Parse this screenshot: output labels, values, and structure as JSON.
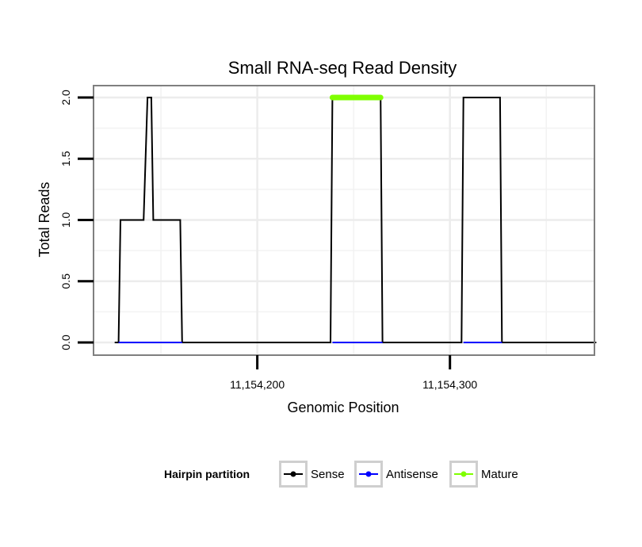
{
  "chart_data": {
    "type": "line",
    "title": "Small RNA-seq Read Density",
    "xlabel": "Genomic Position",
    "ylabel": "Total Reads",
    "xlim": [
      11154115,
      11154375
    ],
    "ylim": [
      0,
      2
    ],
    "x_ticks": [
      11154200,
      11154300
    ],
    "x_tick_labels": [
      "11,154,200",
      "11,154,300"
    ],
    "y_ticks": [
      0,
      0.5,
      1,
      1.5,
      2
    ],
    "y_tick_labels": [
      "0.0",
      "0.5",
      "1.0",
      "1.5",
      "2.0"
    ],
    "grid": true,
    "legend": {
      "title": "Hairpin partition",
      "position": "bottom",
      "entries": [
        {
          "name": "Sense",
          "color": "#000000"
        },
        {
          "name": "Antisense",
          "color": "#0000ff"
        },
        {
          "name": "Mature",
          "color": "#7fff00"
        }
      ]
    },
    "series": [
      {
        "name": "Sense",
        "color": "#000000",
        "x": [
          11154126,
          11154128,
          11154129,
          11154140,
          11154141,
          11154143,
          11154144,
          11154145,
          11154146,
          11154160,
          11154161,
          11154238,
          11154239,
          11154264,
          11154265,
          11154306,
          11154307,
          11154326,
          11154327,
          11154376
        ],
        "y": [
          0,
          0,
          1,
          1,
          1,
          2,
          2,
          2,
          1,
          1,
          0,
          0,
          2,
          2,
          0,
          0,
          2,
          2,
          0,
          0
        ]
      },
      {
        "name": "Antisense",
        "color": "#0000ff",
        "x": [
          11154128,
          11154161,
          11154239,
          11154265,
          11154307,
          11154327
        ],
        "y": [
          0,
          0,
          0,
          0,
          0,
          0
        ],
        "segments": [
          [
            11154128,
            11154161
          ],
          [
            11154239,
            11154265
          ],
          [
            11154307,
            11154327
          ]
        ]
      },
      {
        "name": "Mature",
        "color": "#7fff00",
        "x": [
          11154239,
          11154264
        ],
        "y": [
          2,
          2
        ]
      }
    ]
  }
}
